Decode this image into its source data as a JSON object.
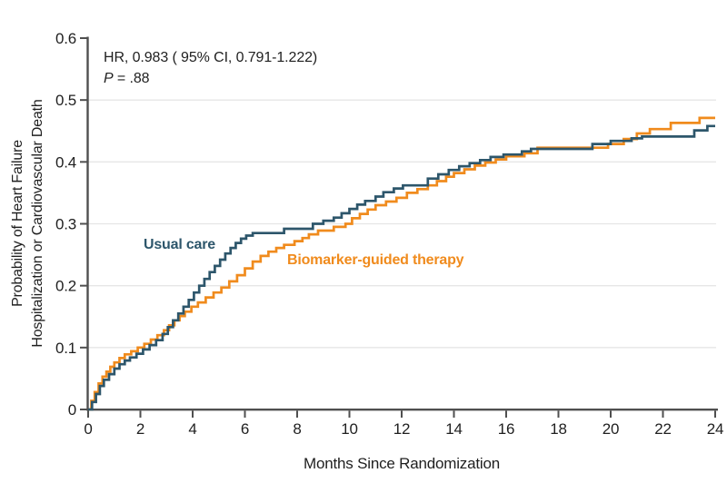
{
  "chart_data": {
    "type": "line",
    "subtype": "kaplan-meier-step",
    "title": "",
    "xlabel": "Months Since Randomization",
    "ylabel_line1": "Probability of Heart Failure",
    "ylabel_line2": "Hospitalization or Cardiovascular Death",
    "x_range": [
      0,
      24
    ],
    "y_range": [
      0,
      0.6
    ],
    "x_ticks": [
      {
        "v": 0,
        "label": "0"
      },
      {
        "v": 2,
        "label": "2"
      },
      {
        "v": 4,
        "label": "4"
      },
      {
        "v": 6,
        "label": "6"
      },
      {
        "v": 8,
        "label": "8"
      },
      {
        "v": 10,
        "label": "10"
      },
      {
        "v": 12,
        "label": "12"
      },
      {
        "v": 14,
        "label": "14"
      },
      {
        "v": 16,
        "label": "16"
      },
      {
        "v": 18,
        "label": "18"
      },
      {
        "v": 20,
        "label": "20"
      },
      {
        "v": 22,
        "label": "22"
      },
      {
        "v": 24,
        "label": "24"
      }
    ],
    "y_ticks": [
      {
        "v": 0,
        "label": "0"
      },
      {
        "v": 0.1,
        "label": "0.1"
      },
      {
        "v": 0.2,
        "label": "0.2"
      },
      {
        "v": 0.3,
        "label": "0.3"
      },
      {
        "v": 0.4,
        "label": "0.4"
      },
      {
        "v": 0.5,
        "label": "0.5"
      },
      {
        "v": 0.6,
        "label": "0.6"
      }
    ],
    "grid_y": [
      0.1,
      0.2,
      0.3,
      0.4,
      0.5
    ],
    "grid_color": "#e6e6e6",
    "axis_color": "#4f4f4f",
    "legend_position": "inline-labels-on-chart",
    "annotation": {
      "line1": "HR, 0.983 ( 95% CI, 0.791-1.222)",
      "p_label": "P",
      "p_rest": " = .88"
    },
    "series": [
      {
        "name": "Usual care",
        "color": "#2d566b",
        "points": [
          [
            0,
            0
          ],
          [
            0.15,
            0.012
          ],
          [
            0.3,
            0.025
          ],
          [
            0.45,
            0.038
          ],
          [
            0.6,
            0.048
          ],
          [
            0.8,
            0.057
          ],
          [
            1.0,
            0.066
          ],
          [
            1.2,
            0.073
          ],
          [
            1.4,
            0.079
          ],
          [
            1.6,
            0.084
          ],
          [
            1.85,
            0.09
          ],
          [
            2.1,
            0.097
          ],
          [
            2.35,
            0.104
          ],
          [
            2.6,
            0.112
          ],
          [
            2.85,
            0.122
          ],
          [
            3.05,
            0.133
          ],
          [
            3.25,
            0.144
          ],
          [
            3.45,
            0.155
          ],
          [
            3.65,
            0.166
          ],
          [
            3.85,
            0.177
          ],
          [
            4.05,
            0.189
          ],
          [
            4.25,
            0.2
          ],
          [
            4.45,
            0.211
          ],
          [
            4.65,
            0.222
          ],
          [
            4.85,
            0.232
          ],
          [
            5.05,
            0.242
          ],
          [
            5.25,
            0.252
          ],
          [
            5.45,
            0.261
          ],
          [
            5.65,
            0.269
          ],
          [
            5.85,
            0.276
          ],
          [
            6.05,
            0.281
          ],
          [
            6.3,
            0.285
          ],
          [
            7.5,
            0.292
          ],
          [
            8.6,
            0.3
          ],
          [
            9.0,
            0.305
          ],
          [
            9.4,
            0.31
          ],
          [
            9.7,
            0.317
          ],
          [
            10.0,
            0.324
          ],
          [
            10.3,
            0.331
          ],
          [
            10.6,
            0.337
          ],
          [
            11.0,
            0.344
          ],
          [
            11.3,
            0.351
          ],
          [
            11.7,
            0.357
          ],
          [
            12.05,
            0.362
          ],
          [
            13.0,
            0.373
          ],
          [
            13.4,
            0.38
          ],
          [
            13.8,
            0.387
          ],
          [
            14.2,
            0.393
          ],
          [
            14.6,
            0.398
          ],
          [
            15.0,
            0.403
          ],
          [
            15.4,
            0.408
          ],
          [
            15.9,
            0.412
          ],
          [
            16.6,
            0.417
          ],
          [
            16.95,
            0.421
          ],
          [
            19.3,
            0.429
          ],
          [
            20.0,
            0.434
          ],
          [
            20.8,
            0.438
          ],
          [
            21.2,
            0.441
          ],
          [
            23.2,
            0.451
          ],
          [
            23.7,
            0.458
          ],
          [
            24,
            0.458
          ]
        ]
      },
      {
        "name": "Biomarker-guided therapy",
        "color": "#f08b1d",
        "points": [
          [
            0,
            0
          ],
          [
            0.12,
            0.014
          ],
          [
            0.25,
            0.028
          ],
          [
            0.4,
            0.042
          ],
          [
            0.55,
            0.053
          ],
          [
            0.7,
            0.061
          ],
          [
            0.85,
            0.069
          ],
          [
            1.0,
            0.076
          ],
          [
            1.2,
            0.083
          ],
          [
            1.4,
            0.089
          ],
          [
            1.65,
            0.094
          ],
          [
            1.9,
            0.1
          ],
          [
            2.15,
            0.106
          ],
          [
            2.4,
            0.113
          ],
          [
            2.65,
            0.12
          ],
          [
            2.9,
            0.128
          ],
          [
            3.1,
            0.136
          ],
          [
            3.3,
            0.144
          ],
          [
            3.5,
            0.151
          ],
          [
            3.7,
            0.158
          ],
          [
            3.95,
            0.166
          ],
          [
            4.2,
            0.173
          ],
          [
            4.5,
            0.181
          ],
          [
            4.8,
            0.189
          ],
          [
            5.1,
            0.197
          ],
          [
            5.4,
            0.207
          ],
          [
            5.7,
            0.217
          ],
          [
            6.0,
            0.228
          ],
          [
            6.3,
            0.239
          ],
          [
            6.6,
            0.248
          ],
          [
            6.9,
            0.255
          ],
          [
            7.2,
            0.261
          ],
          [
            7.5,
            0.266
          ],
          [
            7.9,
            0.272
          ],
          [
            8.2,
            0.277
          ],
          [
            8.45,
            0.283
          ],
          [
            8.8,
            0.289
          ],
          [
            9.4,
            0.295
          ],
          [
            9.85,
            0.3
          ],
          [
            10.1,
            0.309
          ],
          [
            10.4,
            0.316
          ],
          [
            10.7,
            0.323
          ],
          [
            11.0,
            0.33
          ],
          [
            11.4,
            0.336
          ],
          [
            11.8,
            0.342
          ],
          [
            12.2,
            0.35
          ],
          [
            12.6,
            0.356
          ],
          [
            13.0,
            0.362
          ],
          [
            13.35,
            0.369
          ],
          [
            13.7,
            0.376
          ],
          [
            14.0,
            0.382
          ],
          [
            14.4,
            0.388
          ],
          [
            14.8,
            0.394
          ],
          [
            15.2,
            0.399
          ],
          [
            15.6,
            0.404
          ],
          [
            16.0,
            0.409
          ],
          [
            16.7,
            0.414
          ],
          [
            17.2,
            0.423
          ],
          [
            19.9,
            0.429
          ],
          [
            20.5,
            0.437
          ],
          [
            21.0,
            0.446
          ],
          [
            21.5,
            0.453
          ],
          [
            22.3,
            0.463
          ],
          [
            23.4,
            0.471
          ],
          [
            24,
            0.471
          ]
        ]
      }
    ]
  }
}
